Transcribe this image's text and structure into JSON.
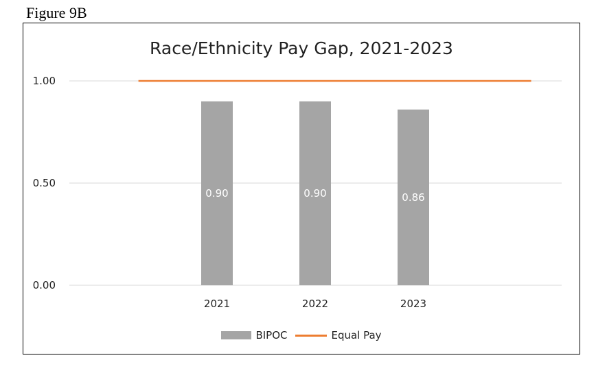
{
  "figure_label": "Figure 9B",
  "chart_data": {
    "type": "bar",
    "title": "Race/Ethnicity Pay Gap, 2021-2023",
    "categories": [
      "2021",
      "2022",
      "2023"
    ],
    "series": [
      {
        "name": "BIPOC",
        "type": "bar",
        "values": [
          0.9,
          0.9,
          0.86
        ],
        "color": "#a5a5a5"
      },
      {
        "name": "Equal Pay",
        "type": "line",
        "values": [
          1.0,
          1.0,
          1.0
        ],
        "color": "#ed7d31"
      }
    ],
    "data_labels": [
      "0.90",
      "0.90",
      "0.86"
    ],
    "yticks": [
      "0.00",
      "0.50",
      "1.00"
    ],
    "ylim": [
      0,
      1
    ],
    "grid": true,
    "legend_position": "bottom"
  }
}
